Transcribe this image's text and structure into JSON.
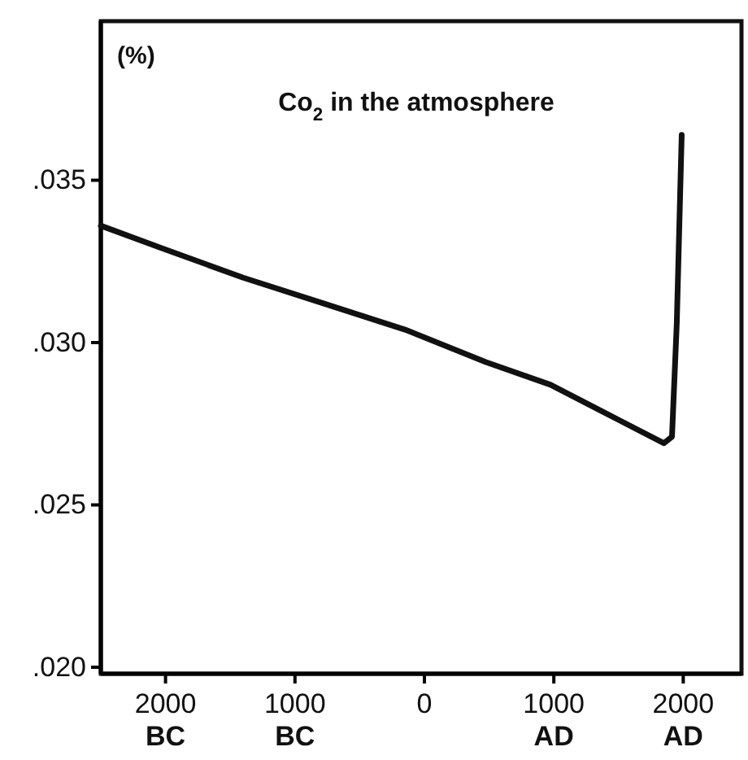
{
  "chart_data": {
    "type": "line",
    "title": "Co$_{2}$ in the atmosphere",
    "ylabel": "(%)",
    "x": [
      -2500,
      -2025,
      -1400,
      -775,
      -150,
      475,
      975,
      1850,
      1913,
      1950,
      1988
    ],
    "series": [
      {
        "color": "#111111",
        "values": [
          0.0336,
          0.0329,
          0.032,
          0.0312,
          0.0304,
          0.0294,
          0.0287,
          0.0269,
          0.0271,
          0.0306,
          0.0364
        ]
      }
    ],
    "xlim": [
      -2500,
      2450
    ],
    "ylim": [
      0.0198,
      0.0399
    ],
    "xticks": [
      {
        "value": -2000,
        "label": "2000 BC"
      },
      {
        "value": -1000,
        "label": "1000 BC"
      },
      {
        "value": 0,
        "label": "0"
      },
      {
        "value": 1000,
        "label": "1000 AD"
      },
      {
        "value": 2000,
        "label": "2000 AD"
      }
    ],
    "yticks": [
      {
        "value": 0.02,
        "label": ".020"
      },
      {
        "value": 0.025,
        "label": ".025"
      },
      {
        "value": 0.03,
        "label": ".030"
      },
      {
        "value": 0.035,
        "label": ".035"
      }
    ],
    "marker": "none",
    "line_style": "solid"
  }
}
